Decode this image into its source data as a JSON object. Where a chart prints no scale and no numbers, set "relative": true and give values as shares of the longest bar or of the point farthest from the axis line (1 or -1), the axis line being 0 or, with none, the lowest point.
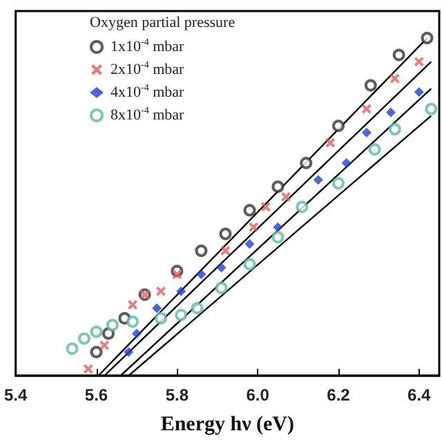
{
  "chart_data": {
    "type": "scatter",
    "relative": true,
    "xlabel": "Energy hν (eV)",
    "legend_title": "Oxygen partial pressure",
    "legend": "top left",
    "grid": false,
    "xlim": [
      5.4,
      6.45
    ],
    "xticks": [
      5.4,
      5.6,
      5.8,
      {
        "value": 6,
        "label": "6.0"
      },
      6.2,
      6.4
    ],
    "series": [
      {
        "name": "1x10$^{-4}$ mbar",
        "color": "#333333",
        "marker": "circle",
        "x": [
          5.6,
          5.63,
          5.67,
          5.72,
          5.8,
          5.86,
          5.92,
          5.98,
          6.05,
          6.12,
          6.2,
          6.28,
          6.35,
          6.42
        ],
        "values": [
          0.07,
          0.125,
          0.17,
          0.24,
          0.31,
          0.37,
          0.42,
          0.49,
          0.56,
          0.63,
          0.74,
          0.86,
          0.95,
          1
        ]
      },
      {
        "name": "2x10$^{-4}$ mbar",
        "color": "#e06060",
        "marker": "cross",
        "x": [
          5.58,
          5.62,
          5.69,
          5.72,
          5.76,
          5.8,
          5.92,
          5.99,
          6.02,
          6.07,
          6.18,
          6.27,
          6.34,
          6.4
        ],
        "values": [
          0.02,
          0.09,
          0.21,
          0.24,
          0.25,
          0.3,
          0.37,
          0.44,
          0.5,
          0.53,
          0.69,
          0.79,
          0.88,
          0.93
        ]
      },
      {
        "name": "4x10$^{-4}$ mbar",
        "color": "#1f3fcf",
        "marker": "diamond",
        "x": [
          5.68,
          5.7,
          5.75,
          5.81,
          5.86,
          5.91,
          5.98,
          6.05,
          6.15,
          6.22,
          6.27,
          6.33,
          6.4
        ],
        "values": [
          0.07,
          0.125,
          0.2,
          0.25,
          0.3,
          0.32,
          0.39,
          0.44,
          0.58,
          0.63,
          0.72,
          0.78,
          0.84
        ]
      },
      {
        "name": "8x10$^{-4}$ mbar",
        "color": "#5fb8a8",
        "marker": "circle",
        "x": [
          5.54,
          5.57,
          5.6,
          5.64,
          5.69,
          5.76,
          5.81,
          5.85,
          5.91,
          5.98,
          6.05,
          6.11,
          6.2,
          6.29,
          6.34,
          6.43
        ],
        "values": [
          0.08,
          0.11,
          0.13,
          0.15,
          0.16,
          0.17,
          0.18,
          0.2,
          0.26,
          0.33,
          0.41,
          0.5,
          0.57,
          0.67,
          0.73,
          0.79
        ]
      },
      {
        "type": "line",
        "color": "#000000",
        "x": [
          5.605,
          6.42
        ],
        "values": [
          0,
          1
        ]
      },
      {
        "type": "line",
        "color": "#000000",
        "x": [
          5.62,
          6.43
        ],
        "values": [
          0,
          0.93
        ]
      },
      {
        "type": "line",
        "color": "#000000",
        "x": [
          5.66,
          6.43
        ],
        "values": [
          0,
          0.85
        ]
      },
      {
        "type": "line",
        "color": "#000000",
        "x": [
          5.68,
          6.43
        ],
        "values": [
          0,
          0.77
        ]
      }
    ]
  }
}
